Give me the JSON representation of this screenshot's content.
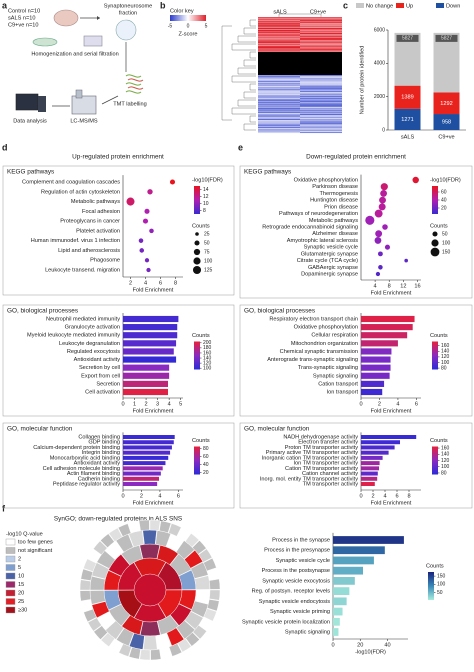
{
  "panel_labels": [
    "a",
    "b",
    "c",
    "d",
    "e",
    "f"
  ],
  "workflow": {
    "cohorts": [
      "Control n=10",
      "sALS n=10",
      "C9+ve n=10"
    ],
    "fraction": [
      "Synaptoneurosome",
      "fraction"
    ],
    "homogenization": "Homogenization and serial filtration",
    "labelling": "TMT labelling",
    "ms": "LC-MS/MS",
    "analysis": "Data analysis"
  },
  "heatmap": {
    "key_title": "Color key",
    "key_ticks": [
      -5,
      0,
      5
    ],
    "key_label": "Z-score",
    "columns": [
      "sALS",
      "C9+ve"
    ]
  },
  "sections": {
    "up": "Up-regulated protein enrichment",
    "down": "Down-regulated protein enrichment",
    "syngo": "SynGO; down-regulated proteins in ALS SNS"
  },
  "syngo_legend": {
    "title": "-log10 Q-value",
    "items": [
      "too few genes",
      "not significant",
      2,
      5,
      10,
      15,
      20,
      25,
      "≥30"
    ],
    "colors": [
      "#ffffff",
      "#bdbdbd",
      "#b9cde8",
      "#7f9fd0",
      "#4a62a8",
      "#9c2a6a",
      "#c42033",
      "#e01f26",
      "#a3121a"
    ]
  },
  "chart_data": [
    {
      "type": "stacked_bar",
      "categories": [
        "sALS",
        "C9+ve"
      ],
      "ylabel": "Number of protein identified",
      "ylim": [
        0,
        6000
      ],
      "yticks": [
        0,
        2000,
        4000,
        6000
      ],
      "totals": [
        "5827",
        "5827"
      ],
      "series": [
        {
          "name": "Down",
          "color": "#1f4fa0",
          "values": [
            1271,
            958
          ]
        },
        {
          "name": "Up",
          "color": "#e8231e",
          "values": [
            1389,
            1292
          ]
        },
        {
          "name": "No change",
          "color": "#c8c8c8",
          "values": [
            3167,
            3577
          ]
        }
      ]
    },
    {
      "type": "dot",
      "heading": "KEGG pathways",
      "categories": [
        "Complement and coagulation cascades",
        "Regulation of actin cytoskeleton",
        "Metabolic pathways",
        "Focal adhesion",
        "Proteoglycans in cancer",
        "Platelet activation",
        "Human immunodef. virus 1 infection",
        "Lipid and atherosclerosis",
        "Phagosome",
        "Leukocyte transend. migration"
      ],
      "values": [
        7.6,
        4.6,
        2.0,
        4.2,
        4.0,
        4.8,
        3.4,
        3.5,
        4.2,
        4.4
      ],
      "sizes": [
        50,
        55,
        125,
        50,
        50,
        40,
        40,
        40,
        35,
        35
      ],
      "colorvals": [
        15,
        12,
        13,
        11,
        11,
        10,
        9,
        9,
        9,
        9
      ],
      "xlabel": "Fold Enrichment",
      "xlim": [
        1,
        9
      ],
      "xticks": [
        2,
        4,
        6,
        8
      ],
      "size_title": "Counts",
      "size_ticks": [
        25,
        50,
        75,
        100,
        125
      ],
      "colorbar": {
        "title": "-log10(FDR)",
        "clim": [
          7,
          15
        ],
        "ticks": [
          8,
          10,
          12,
          14
        ],
        "colors": [
          "#3a2ad0",
          "#b020b0",
          "#e8141e"
        ]
      }
    },
    {
      "type": "bar",
      "heading": "GO, biological processes",
      "categories": [
        "Neutrophil mediated immunity",
        "Granulocyte activation",
        "Myeloid leukocyte mediated immunity",
        "Leukocyte degranulation",
        "Regulated exocytosis",
        "Antioxidant activity",
        "Secretion by cell",
        "Export from cell",
        "Secretion",
        "Cell activation"
      ],
      "values": [
        4.8,
        4.7,
        4.7,
        4.6,
        4.4,
        4.6,
        4.0,
        4.0,
        3.9,
        3.9
      ],
      "colorvals": [
        110,
        110,
        115,
        120,
        130,
        100,
        150,
        160,
        180,
        200
      ],
      "xlabel": "Fold Enrichment",
      "xlim": [
        0,
        5.2
      ],
      "xticks": [
        0,
        1,
        2,
        3,
        4,
        5
      ],
      "colorbar": {
        "title": "Counts",
        "clim": [
          95,
          205
        ],
        "ticks": [
          100,
          120,
          140,
          160,
          180,
          200
        ],
        "colors": [
          "#2a2ad8",
          "#8a2ac0",
          "#e8203a"
        ]
      }
    },
    {
      "type": "bar",
      "heading": "GO, molecular function",
      "categories": [
        "Collagen binding",
        "GDP binding",
        "Calcium-dependent protein binding",
        "Integrin binding",
        "Monocarboxylic acid binding",
        "Antioxidant activity",
        "Cell adhesion molecule binding",
        "Actin filament binding",
        "Cadherin binding",
        "Peptidase regulator activity"
      ],
      "values": [
        5.6,
        5.5,
        5.3,
        5.1,
        4.9,
        4.6,
        4.3,
        4.1,
        3.9,
        3.7
      ],
      "colorvals": [
        20,
        25,
        25,
        30,
        20,
        25,
        55,
        40,
        70,
        50
      ],
      "xlabel": "Fold Enrichment",
      "xlim": [
        0,
        6.5
      ],
      "xticks": [
        0,
        2,
        4,
        6
      ],
      "colorbar": {
        "title": "Counts",
        "clim": [
          15,
          85
        ],
        "ticks": [
          20,
          40,
          60,
          80
        ],
        "colors": [
          "#2a2ad8",
          "#8a2ac0",
          "#e8203a"
        ]
      }
    },
    {
      "type": "dot",
      "heading": "KEGG pathways",
      "categories": [
        "Oxidative phosphorylation",
        "Parkinson disease",
        "Thermogenesis",
        "Huntington disease",
        "Prion disease",
        "Pathways of neurodegeneration",
        "Metabolic pathways",
        "Retrograde endocannabinoid signaling",
        "Alzheimer disease",
        "Amyotrophic lateral sclerosis",
        "Synaptic vesicle cycle",
        "Glutamatergic synapse",
        "Citrate cycle (TCA cycle)",
        "GABAergic synapse",
        "Dopaminergic synapse"
      ],
      "values": [
        15.5,
        6.6,
        6.4,
        6.1,
        6.0,
        5.0,
        2.5,
        6.8,
        5.0,
        4.8,
        7.5,
        5.5,
        12.8,
        5.5,
        4.8
      ],
      "sizes": [
        80,
        100,
        90,
        90,
        95,
        120,
        160,
        60,
        90,
        90,
        50,
        45,
        25,
        40,
        35
      ],
      "colorvals": [
        70,
        55,
        45,
        45,
        45,
        45,
        35,
        35,
        35,
        30,
        30,
        20,
        15,
        15,
        12
      ],
      "xlabel": "Fold Enrichment",
      "xlim": [
        0,
        17
      ],
      "xticks": [
        4,
        8,
        12,
        16
      ],
      "size_title": "Counts",
      "size_ticks": [
        50,
        100,
        150
      ],
      "colorbar": {
        "title": "-log10(FDR)",
        "clim": [
          5,
          75
        ],
        "ticks": [
          20,
          40,
          60
        ],
        "colors": [
          "#3a2ad0",
          "#b020b0",
          "#e8141e"
        ]
      }
    },
    {
      "type": "bar",
      "heading": "GO, biological processes",
      "categories": [
        "Respiratory electron transport chain",
        "Oxidative phosphorylation",
        "Cellular respiration",
        "Mitochondrion organization",
        "Chemical synaptic transmission",
        "Anterograde trans-synaptic signaling",
        "Trans-synaptic signaling",
        "Synaptic signaling",
        "Cation transport",
        "Ion transport"
      ],
      "values": [
        5.8,
        5.6,
        5.0,
        4.0,
        3.3,
        3.2,
        3.2,
        3.1,
        2.5,
        2.3
      ],
      "colorvals": [
        170,
        165,
        160,
        155,
        120,
        115,
        115,
        115,
        95,
        85
      ],
      "xlabel": "Fold Enrichment",
      "xlim": [
        0,
        6.5
      ],
      "xticks": [
        0,
        2,
        4,
        6
      ],
      "colorbar": {
        "title": "Counts",
        "clim": [
          75,
          175
        ],
        "ticks": [
          80,
          100,
          120,
          140,
          160
        ],
        "colors": [
          "#2a2ad8",
          "#8a2ac0",
          "#e8203a"
        ]
      }
    },
    {
      "type": "bar",
      "heading": "GO, molecular function",
      "categories": [
        "NADH dehydrogenase activity",
        "Electron transfer activity",
        "Proton TM transporter activity",
        "Primary active TM transporter activity",
        "Inorganic cation TM transporter activity",
        "Ion TM transporter activity",
        "Cation TM transporter activity",
        "Cation channel activity",
        "Inorg. mol. entity TM transporter activity",
        "TM transporter activity"
      ],
      "values": [
        9.2,
        6.5,
        5.6,
        4.6,
        3.6,
        3.1,
        3.0,
        2.8,
        2.7,
        2.3
      ],
      "colorvals": [
        80,
        85,
        90,
        95,
        110,
        130,
        130,
        100,
        140,
        160
      ],
      "xlabel": "Fold Enrichment",
      "xlim": [
        0,
        10
      ],
      "xticks": [
        0,
        2,
        4,
        6,
        8
      ],
      "colorbar": {
        "title": "Counts",
        "clim": [
          75,
          165
        ],
        "ticks": [
          80,
          100,
          120,
          140,
          160
        ],
        "colors": [
          "#2a2ad8",
          "#8a2ac0",
          "#e8203a"
        ]
      }
    },
    {
      "type": "bar",
      "categories": [
        "Process in the synapse",
        "Process in the presynapse",
        "Synaptic vesicle cycle",
        "Process in the postsynapse",
        "Synaptic vesicle exocytosis",
        "Reg. of postsyn. receptor levels",
        "Synaptic vesicle endocytosis",
        "Synaptic vesicle priming",
        "Synaptic vesicle protein localization",
        "Synaptic signaling"
      ],
      "values": [
        52,
        38,
        30,
        22,
        16,
        12,
        10,
        7,
        5,
        4
      ],
      "colorvals": [
        160,
        120,
        70,
        60,
        35,
        20,
        25,
        15,
        10,
        12
      ],
      "xlabel": "-log10(FDR)",
      "xlim": [
        0,
        55
      ],
      "xticks": [
        0,
        20,
        40
      ],
      "colorbar": {
        "title": "Counts",
        "clim": [
          5,
          175
        ],
        "ticks": [
          50,
          100,
          150
        ],
        "colors": [
          "#a8ecdc",
          "#3a8ab8",
          "#1a237e"
        ]
      }
    }
  ]
}
